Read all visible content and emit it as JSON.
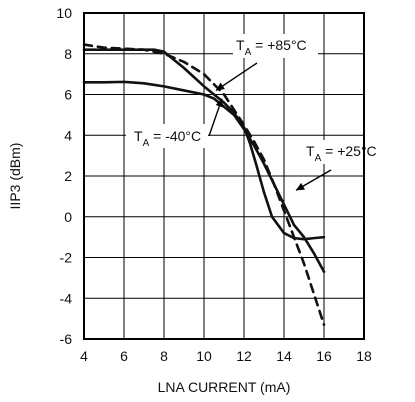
{
  "chart_data": {
    "type": "line",
    "title": "",
    "xlabel": "LNA CURRENT (mA)",
    "ylabel": "IIP3 (dBm)",
    "xlim": [
      4,
      18
    ],
    "ylim": [
      -6,
      10
    ],
    "x_ticks": [
      4,
      6,
      8,
      10,
      12,
      14,
      16,
      18
    ],
    "y_ticks": [
      -6,
      -4,
      -2,
      0,
      2,
      4,
      6,
      8,
      10
    ],
    "grid": true,
    "series": [
      {
        "style": "solid",
        "x": [
          4.0,
          5.0,
          6.0,
          7.0,
          7.5,
          8.0,
          8.5,
          9.0,
          10.0,
          11.0,
          11.5,
          12.0,
          12.3,
          12.6,
          13.0,
          13.4,
          14.0,
          14.5,
          15.0,
          15.5,
          16.0
        ],
        "y": [
          8.2,
          8.2,
          8.2,
          8.2,
          8.2,
          8.1,
          7.7,
          7.3,
          6.4,
          5.6,
          5.1,
          4.4,
          3.6,
          2.6,
          1.2,
          0.0,
          -0.8,
          -1.05,
          -1.1,
          -1.05,
          -1.0
        ]
      },
      {
        "style": "solid",
        "x": [
          4.0,
          5.0,
          6.0,
          7.0,
          8.0,
          9.0,
          10.0,
          10.5,
          11.0,
          11.5,
          12.0,
          12.5,
          13.0,
          13.5,
          14.0,
          14.5,
          15.0,
          15.5,
          16.0
        ],
        "y": [
          6.6,
          6.6,
          6.62,
          6.55,
          6.4,
          6.2,
          6.0,
          5.8,
          5.4,
          5.0,
          4.3,
          3.5,
          2.6,
          1.6,
          0.6,
          -0.4,
          -1.0,
          -1.8,
          -2.7
        ]
      },
      {
        "style": "dashed",
        "x": [
          4.0,
          5.0,
          6.0,
          7.0,
          8.0,
          9.0,
          10.0,
          11.0,
          12.0,
          12.5,
          13.0,
          13.5,
          14.0,
          14.5,
          15.0,
          15.5,
          16.0
        ],
        "y": [
          8.45,
          8.3,
          8.25,
          8.2,
          8.0,
          7.6,
          7.0,
          6.0,
          4.5,
          3.7,
          2.8,
          1.6,
          0.3,
          -1.0,
          -2.3,
          -3.8,
          -5.3
        ]
      }
    ],
    "annotations": [
      {
        "text": "T",
        "subscript": "A",
        "suffix": " = +85°C",
        "arrow_to": [
          10.6,
          6.2
        ]
      },
      {
        "text": "T",
        "subscript": "A",
        "suffix": " = -40°C",
        "arrow_to": [
          10.9,
          5.8
        ]
      },
      {
        "text": "T",
        "subscript": "A",
        "suffix": " = +25°C",
        "arrow_to": [
          14.6,
          1.3
        ]
      }
    ],
    "colors": {
      "line": "#111111",
      "grid": "#000000",
      "background": "#ffffff"
    }
  }
}
